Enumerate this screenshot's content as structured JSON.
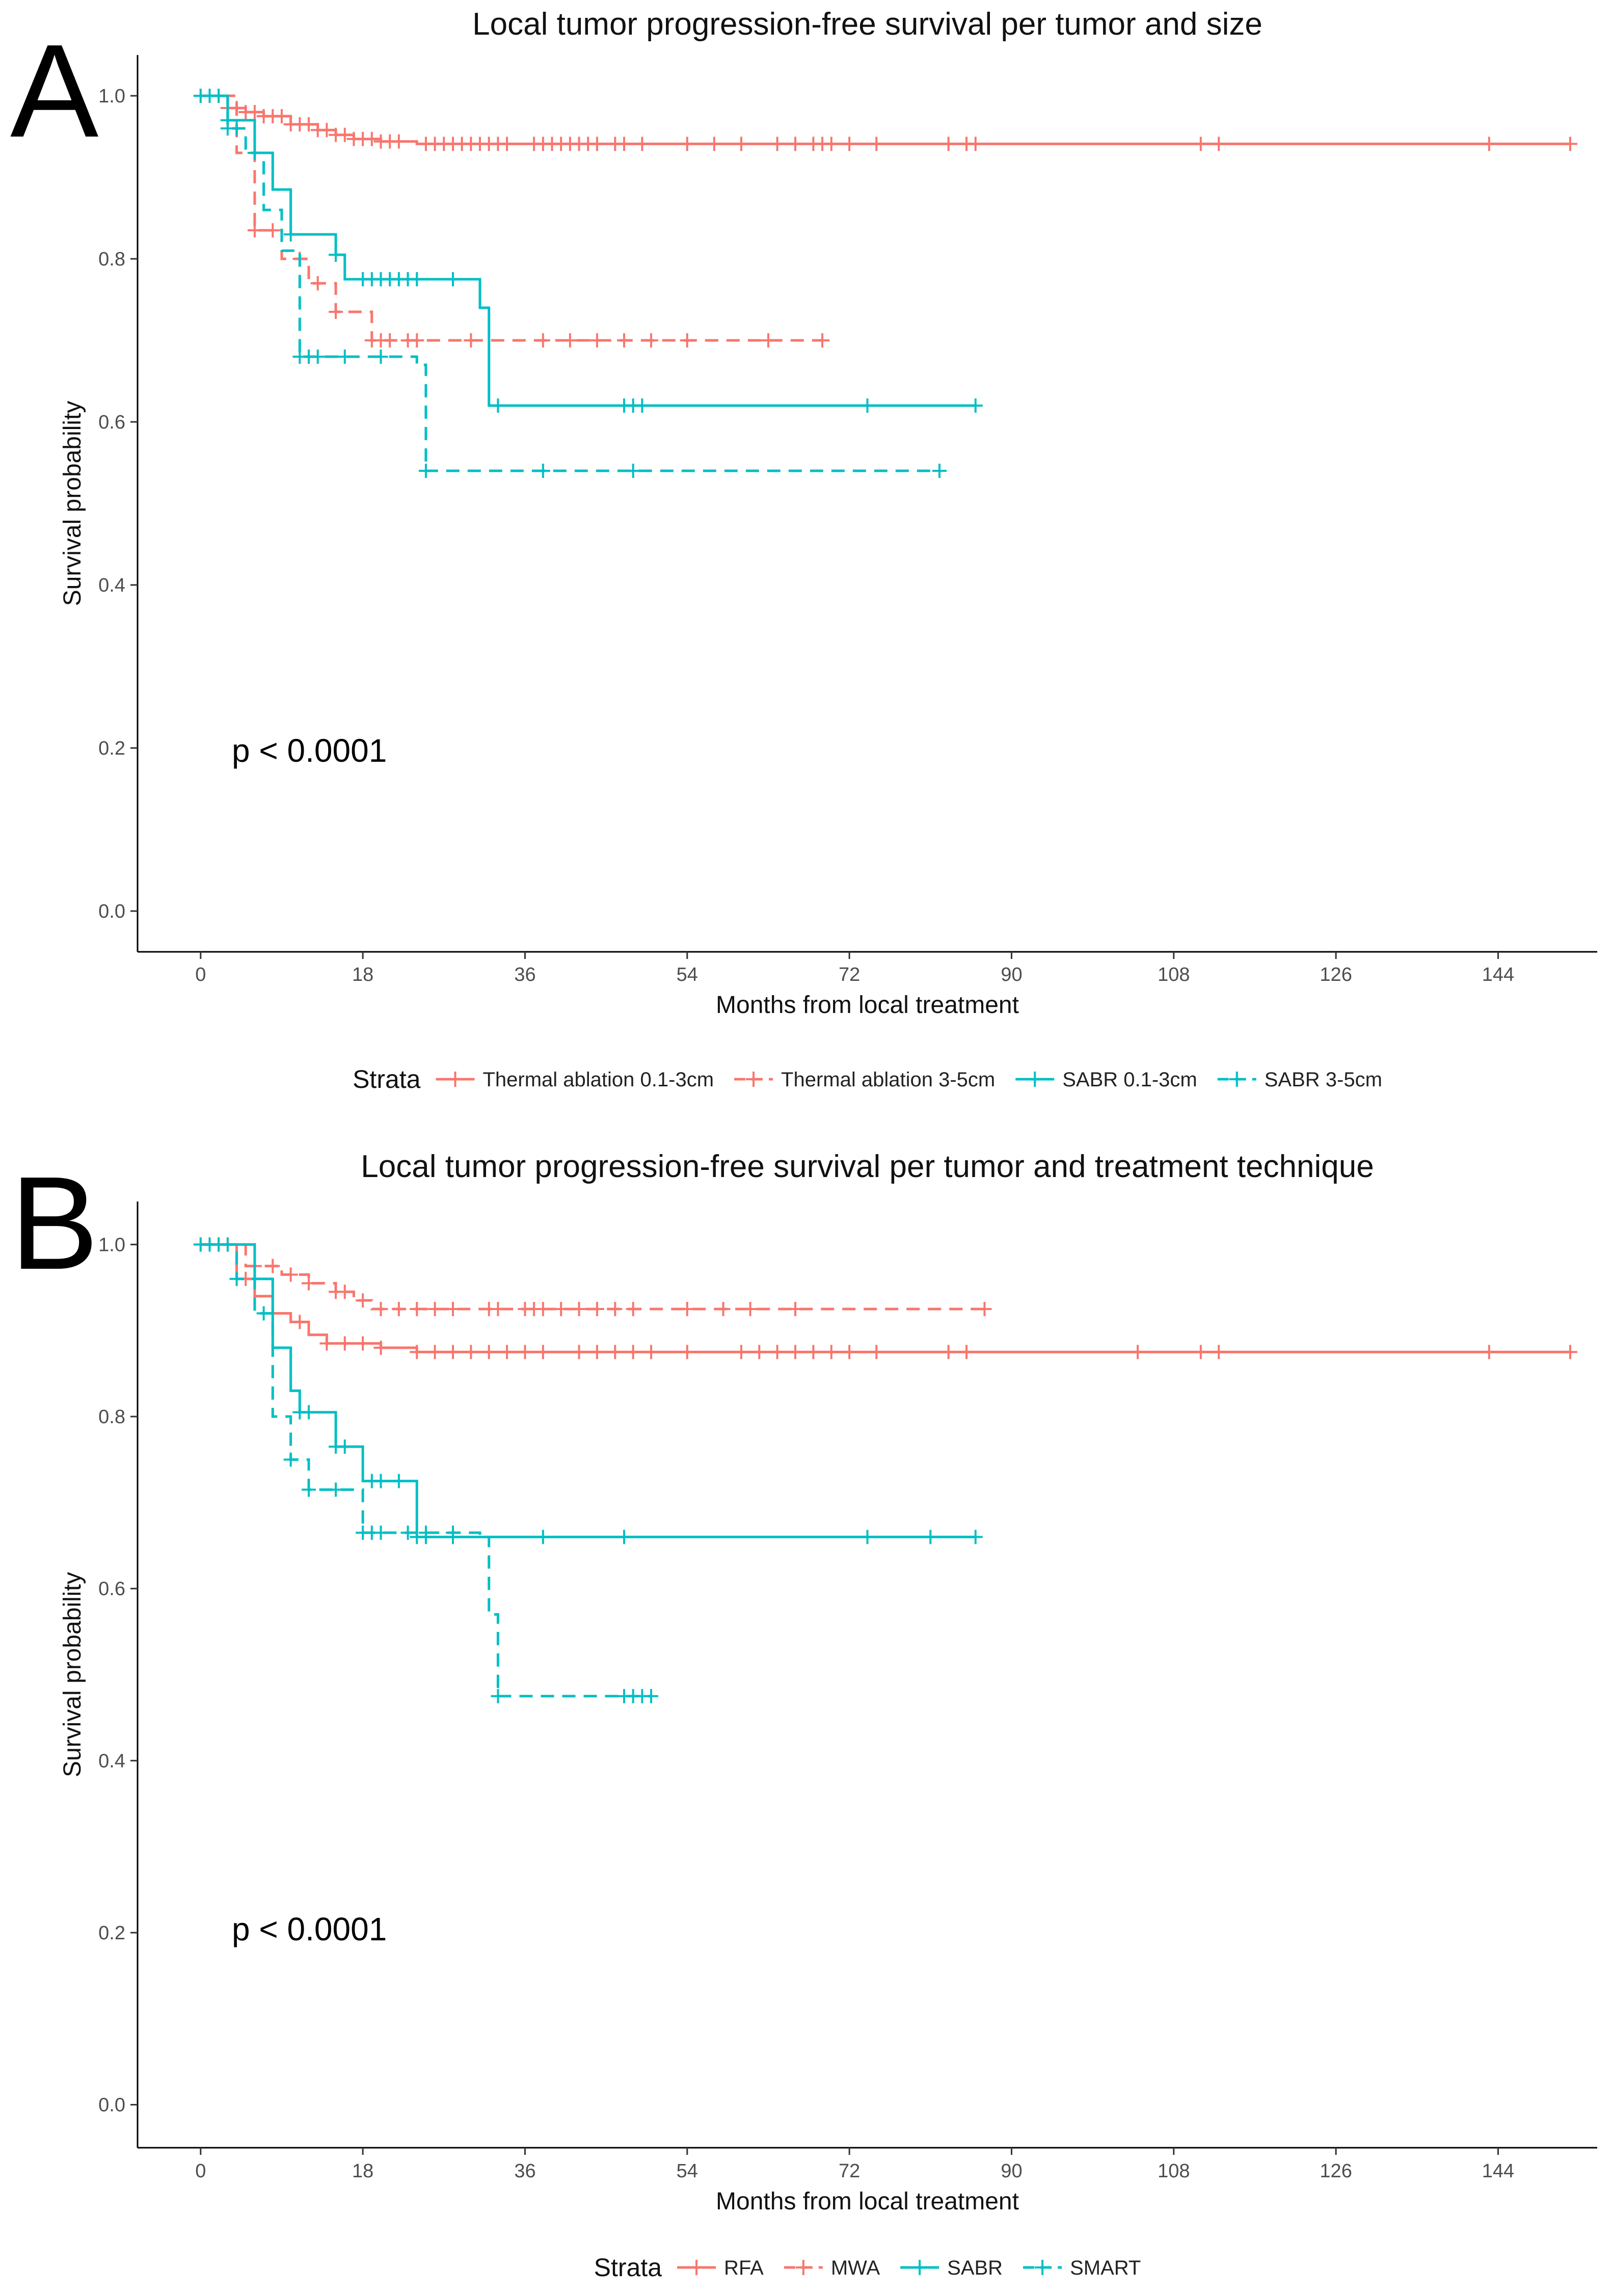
{
  "chart_data": [
    {
      "panel": "A",
      "type": "line",
      "title": "Local tumor progression-free survival per tumor and size",
      "xlabel": "Months from local treatment",
      "ylabel": "Survival probability",
      "xticks": [
        0,
        18,
        36,
        54,
        72,
        90,
        108,
        126,
        144
      ],
      "yticks": [
        0.0,
        0.2,
        0.4,
        0.6,
        0.8,
        1.0
      ],
      "xlim": [
        -7,
        155
      ],
      "ylim": [
        -0.05,
        1.05
      ],
      "annotation": "p < 0.0001",
      "legend_title": "Strata",
      "legend_position": "bottom",
      "grid": false,
      "series": [
        {
          "name": "Thermal ablation 0.1-3cm",
          "color": "#F8766D",
          "dash": false,
          "x": [
            0,
            3,
            5,
            7,
            10,
            13,
            15,
            17,
            20,
            24,
            152
          ],
          "y": [
            1.0,
            0.985,
            0.98,
            0.975,
            0.965,
            0.958,
            0.952,
            0.947,
            0.944,
            0.941,
            0.941
          ],
          "censor_x": [
            0,
            1,
            2,
            3,
            4,
            5,
            6,
            7,
            8,
            9,
            10,
            11,
            12,
            13,
            14,
            15,
            16,
            17,
            18,
            19,
            20,
            21,
            22,
            25,
            26,
            27,
            28,
            29,
            30,
            31,
            32,
            33,
            34,
            37,
            38,
            39,
            40,
            41,
            42,
            43,
            44,
            46,
            47,
            49,
            54,
            57,
            60,
            64,
            66,
            68,
            69,
            70,
            72,
            75,
            83,
            85,
            86,
            111,
            113,
            143,
            152
          ]
        },
        {
          "name": "Thermal ablation 3-5cm",
          "color": "#F8766D",
          "dash": true,
          "x": [
            0,
            4,
            6,
            9,
            12,
            15,
            19,
            69
          ],
          "y": [
            1.0,
            0.93,
            0.835,
            0.8,
            0.77,
            0.735,
            0.7,
            0.7
          ],
          "censor_x": [
            6,
            8,
            11,
            13,
            15,
            19,
            20,
            21,
            23,
            24,
            30,
            38,
            41,
            44,
            47,
            50,
            54,
            63,
            69
          ]
        },
        {
          "name": "SABR 0.1-3cm",
          "color": "#00BFC4",
          "dash": false,
          "x": [
            0,
            3,
            6,
            8,
            10,
            15,
            16,
            31,
            32,
            86
          ],
          "y": [
            1.0,
            0.97,
            0.93,
            0.885,
            0.83,
            0.805,
            0.775,
            0.74,
            0.62,
            0.62
          ],
          "censor_x": [
            0,
            1,
            2,
            3,
            6,
            10,
            15,
            18,
            19,
            20,
            21,
            22,
            23,
            24,
            28,
            33,
            47,
            48,
            49,
            74,
            86
          ]
        },
        {
          "name": "SABR 3-5cm",
          "color": "#00BFC4",
          "dash": true,
          "x": [
            0,
            3,
            5,
            7,
            9,
            11,
            24,
            25,
            82
          ],
          "y": [
            1.0,
            0.96,
            0.93,
            0.86,
            0.81,
            0.68,
            0.67,
            0.54,
            0.54
          ],
          "censor_x": [
            3,
            4,
            6,
            11,
            12,
            13,
            16,
            20,
            25,
            38,
            48,
            82
          ]
        }
      ]
    },
    {
      "panel": "B",
      "type": "line",
      "title": "Local tumor progression-free survival per tumor and treatment technique",
      "xlabel": "Months from local treatment",
      "ylabel": "Survival probability",
      "xticks": [
        0,
        18,
        36,
        54,
        72,
        90,
        108,
        126,
        144
      ],
      "yticks": [
        0.0,
        0.2,
        0.4,
        0.6,
        0.8,
        1.0
      ],
      "xlim": [
        -7,
        155
      ],
      "ylim": [
        -0.05,
        1.05
      ],
      "annotation": "p < 0.0001",
      "legend_title": "Strata",
      "legend_position": "bottom",
      "grid": false,
      "series": [
        {
          "name": "RFA",
          "color": "#F8766D",
          "dash": false,
          "x": [
            0,
            4,
            6,
            8,
            10,
            12,
            14,
            20,
            24,
            152
          ],
          "y": [
            1.0,
            0.96,
            0.94,
            0.92,
            0.91,
            0.895,
            0.885,
            0.88,
            0.875,
            0.875
          ],
          "censor_x": [
            0,
            1,
            2,
            3,
            5,
            8,
            11,
            14,
            16,
            18,
            20,
            24,
            26,
            28,
            30,
            32,
            34,
            36,
            38,
            42,
            44,
            46,
            48,
            50,
            54,
            60,
            62,
            64,
            66,
            68,
            70,
            72,
            75,
            83,
            85,
            104,
            111,
            113,
            143,
            152
          ]
        },
        {
          "name": "MWA",
          "color": "#F8766D",
          "dash": true,
          "x": [
            0,
            5,
            9,
            12,
            15,
            17,
            19,
            87
          ],
          "y": [
            1.0,
            0.975,
            0.965,
            0.955,
            0.945,
            0.935,
            0.925,
            0.925
          ],
          "censor_x": [
            6,
            8,
            10,
            12,
            15,
            16,
            18,
            20,
            22,
            24,
            26,
            28,
            32,
            33,
            36,
            37,
            38,
            40,
            42,
            44,
            46,
            48,
            54,
            58,
            61,
            66,
            87
          ]
        },
        {
          "name": "SABR",
          "color": "#00BFC4",
          "dash": false,
          "x": [
            0,
            6,
            8,
            10,
            11,
            15,
            18,
            24,
            86
          ],
          "y": [
            1.0,
            0.96,
            0.88,
            0.83,
            0.805,
            0.765,
            0.725,
            0.66,
            0.66
          ],
          "censor_x": [
            0,
            1,
            2,
            3,
            11,
            12,
            15,
            16,
            19,
            20,
            22,
            24,
            25,
            28,
            38,
            47,
            74,
            81,
            86
          ]
        },
        {
          "name": "SMART",
          "color": "#00BFC4",
          "dash": true,
          "x": [
            0,
            4,
            6,
            8,
            10,
            12,
            18,
            31,
            32,
            33,
            50
          ],
          "y": [
            1.0,
            0.96,
            0.92,
            0.8,
            0.75,
            0.715,
            0.665,
            0.66,
            0.57,
            0.475,
            0.475
          ],
          "censor_x": [
            4,
            7,
            10,
            12,
            15,
            18,
            19,
            20,
            23,
            25,
            28,
            33,
            47,
            48,
            49,
            50
          ]
        }
      ]
    }
  ]
}
